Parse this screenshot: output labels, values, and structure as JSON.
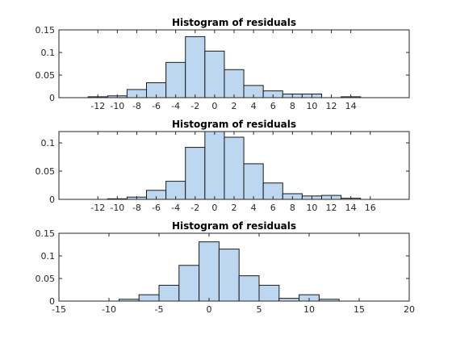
{
  "colors": {
    "bar_fill": "#bdd7f0",
    "bar_edge": "#1a1a1a",
    "axes": "#262626"
  },
  "chart_data": [
    {
      "type": "bar",
      "title": "Histogram of residuals",
      "xlim": [
        -16,
        20
      ],
      "ylim": [
        0,
        0.15
      ],
      "xticks": [
        -12,
        -10,
        -8,
        -6,
        -4,
        -2,
        0,
        2,
        4,
        6,
        8,
        10,
        12,
        14
      ],
      "yticks": [
        0,
        0.05,
        0.1,
        0.15
      ],
      "bin_width": 2,
      "bin_starts": [
        -13,
        -11,
        -9,
        -7,
        -5,
        -3,
        -1,
        1,
        3,
        5,
        7,
        9,
        11,
        13
      ],
      "values": [
        0.002,
        0.004,
        0.018,
        0.033,
        0.078,
        0.135,
        0.103,
        0.062,
        0.027,
        0.015,
        0.008,
        0.008,
        0.0,
        0.002
      ]
    },
    {
      "type": "bar",
      "title": "Histogram of residuals",
      "xlim": [
        -16,
        20
      ],
      "ylim": [
        0,
        0.12
      ],
      "xticks": [
        -12,
        -10,
        -8,
        -6,
        -4,
        -2,
        0,
        2,
        4,
        6,
        8,
        10,
        12,
        14,
        16
      ],
      "yticks": [
        0,
        0.05,
        0.1
      ],
      "bin_width": 2,
      "bin_starts": [
        -13,
        -11,
        -9,
        -7,
        -5,
        -3,
        -1,
        1,
        3,
        5,
        7,
        9,
        11,
        13
      ],
      "values": [
        0.0,
        0.001,
        0.004,
        0.016,
        0.032,
        0.092,
        0.12,
        0.11,
        0.063,
        0.029,
        0.01,
        0.006,
        0.007,
        0.002
      ]
    },
    {
      "type": "bar",
      "title": "Histogram of residuals",
      "xlim": [
        -15,
        20
      ],
      "ylim": [
        0,
        0.15
      ],
      "xticks": [
        -15,
        -10,
        -5,
        0,
        5,
        10,
        15,
        20
      ],
      "yticks": [
        0,
        0.05,
        0.1,
        0.15
      ],
      "bin_width": 2,
      "bin_starts": [
        -11,
        -9,
        -7,
        -5,
        -3,
        -1,
        1,
        3,
        5,
        7,
        9,
        11
      ],
      "values": [
        0.0,
        0.004,
        0.014,
        0.035,
        0.079,
        0.131,
        0.115,
        0.056,
        0.035,
        0.006,
        0.014,
        0.004
      ]
    }
  ]
}
